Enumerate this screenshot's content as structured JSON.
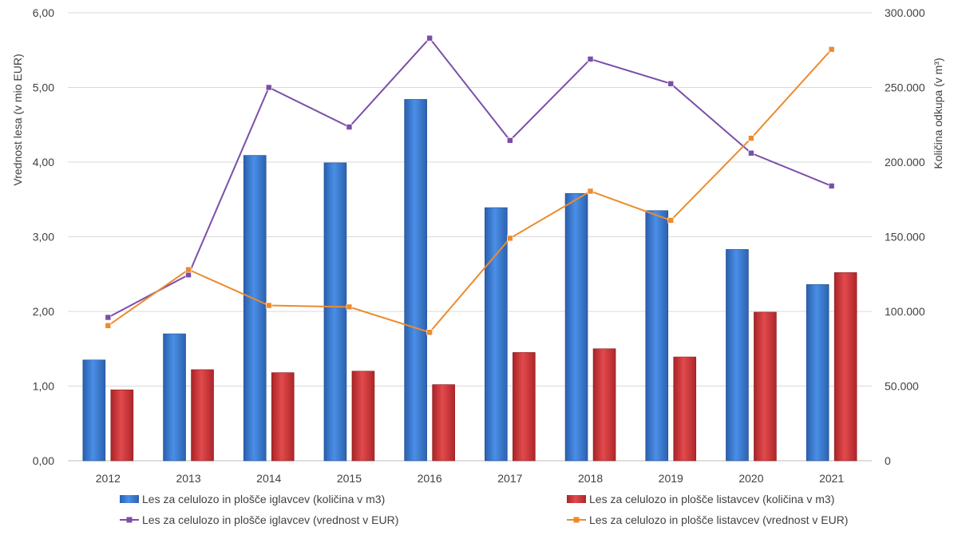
{
  "chart_data": {
    "type": "bar",
    "categories": [
      "2012",
      "2013",
      "2014",
      "2015",
      "2016",
      "2017",
      "2018",
      "2019",
      "2020",
      "2021"
    ],
    "y_left": {
      "label": "Vrednost lesa (v mio EUR)",
      "range": [
        0,
        6
      ],
      "ticks": [
        "0,00",
        "1,00",
        "2,00",
        "3,00",
        "4,00",
        "5,00",
        "6,00"
      ]
    },
    "y_right": {
      "label": "Količina odkupa (v m³)",
      "range": [
        0,
        300000
      ],
      "ticks": [
        "0",
        "50.000",
        "100.000",
        "150.000",
        "200.000",
        "250.000",
        "300.000"
      ]
    },
    "grid": true,
    "legend_position": "bottom",
    "series": [
      {
        "name": "Les za celulozo in plošče iglavcev (količina v m3)",
        "type": "bar",
        "axis": "right",
        "color": "#3B7DD8",
        "values": [
          67500,
          85000,
          204500,
          199500,
          242000,
          169500,
          179000,
          167500,
          141500,
          118000
        ]
      },
      {
        "name": "Les za celulozo in plošče listavcev (količina v m3)",
        "type": "bar",
        "axis": "right",
        "color": "#D9393B",
        "values": [
          47500,
          61000,
          59000,
          60000,
          51000,
          72500,
          75000,
          69500,
          99500,
          126000
        ]
      },
      {
        "name": "Les za celulozo in plošče iglavcev (vrednost v EUR)",
        "type": "line",
        "axis": "left",
        "color": "#7A4FA8",
        "values": [
          1.92,
          2.49,
          5.0,
          4.47,
          5.66,
          4.29,
          5.38,
          5.05,
          4.12,
          3.68
        ]
      },
      {
        "name": "Les za celulozo in plošče listavcev (vrednost v EUR)",
        "type": "line",
        "axis": "left",
        "color": "#ED8B2E",
        "values": [
          1.81,
          2.56,
          2.08,
          2.06,
          1.72,
          2.98,
          3.61,
          3.22,
          4.32,
          5.51
        ]
      }
    ]
  }
}
